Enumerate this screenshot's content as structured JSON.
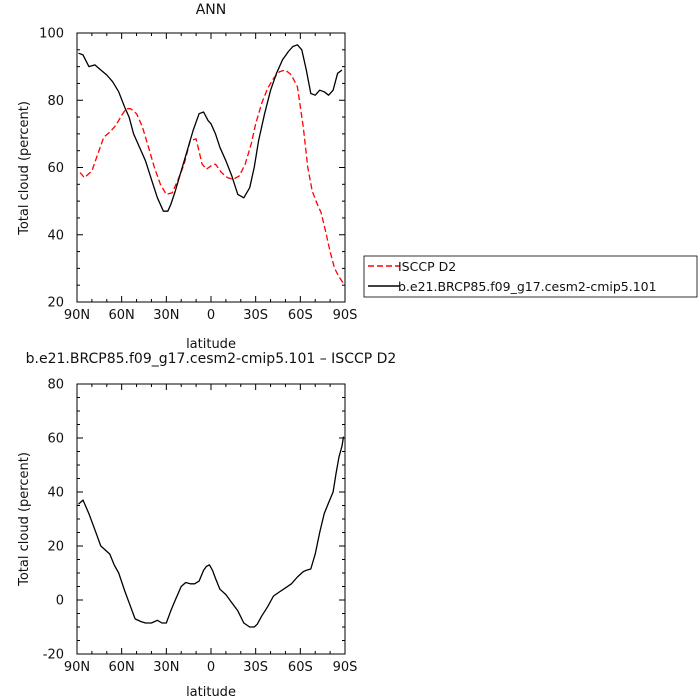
{
  "chart_data": [
    {
      "type": "line",
      "title": "ANN",
      "xlabel": "latitude",
      "ylabel": "Total cloud (percent)",
      "xlim": [
        90,
        -90
      ],
      "ylim": [
        20,
        100
      ],
      "xticks": [
        90,
        60,
        30,
        0,
        -30,
        -60,
        -90
      ],
      "xtick_labels": [
        "90N",
        "60N",
        "30N",
        "0",
        "30S",
        "60S",
        "90S"
      ],
      "yticks": [
        20,
        40,
        60,
        80,
        100
      ],
      "ytick_labels": [
        "20",
        "40",
        "60",
        "80",
        "100"
      ],
      "legend_position": "right-bottom, outside plot",
      "series": [
        {
          "name": "ISCCP D2",
          "color": "#ff0000",
          "dash": "dashed",
          "x": [
            88,
            85,
            80,
            76,
            72,
            68,
            64,
            60,
            57,
            54,
            50,
            46,
            42,
            38,
            34,
            30,
            26,
            22,
            18,
            14,
            10,
            6,
            3,
            0,
            -3,
            -7,
            -11,
            -15,
            -19,
            -23,
            -27,
            -30,
            -34,
            -38,
            -42,
            -46,
            -50,
            -54,
            -58,
            -62,
            -65,
            -68,
            -71,
            -74,
            -77,
            -80,
            -83,
            -86,
            -89
          ],
          "y": [
            58.5,
            57,
            59,
            64,
            69,
            70.5,
            72.5,
            75.5,
            77.5,
            77.5,
            76,
            72,
            66,
            60,
            55,
            52,
            52.5,
            56.5,
            61,
            68,
            68.5,
            61,
            59.5,
            60.5,
            61,
            58.5,
            57,
            56.5,
            57.5,
            61,
            67,
            73,
            79,
            83.5,
            86.5,
            88.5,
            89,
            87.5,
            84,
            72,
            60,
            53,
            49.5,
            46.5,
            41,
            35,
            30,
            27.5,
            25.5
          ]
        },
        {
          "name": "b.e21.BRCP85.f09_g17.cesm2-cmip5.101",
          "color": "#000000",
          "dash": "solid",
          "x": [
            89,
            86,
            82,
            78,
            74,
            70,
            66,
            62,
            58,
            55,
            52,
            48,
            44,
            40,
            36,
            32,
            29,
            27,
            24,
            20,
            16,
            12,
            8,
            5,
            2,
            0,
            -3,
            -6,
            -10,
            -14,
            -18,
            -22,
            -26,
            -29,
            -32,
            -36,
            -40,
            -44,
            -48,
            -52,
            -55,
            -58,
            -61,
            -64,
            -67,
            -70,
            -73,
            -76,
            -79,
            -82,
            -85,
            -88
          ],
          "y": [
            94,
            93.5,
            90,
            90.5,
            89,
            87.5,
            85.5,
            82.5,
            78,
            75,
            70,
            66,
            62,
            56.5,
            51,
            47,
            47,
            49,
            53,
            59,
            65,
            71,
            76,
            76.5,
            74,
            73,
            70,
            66,
            62,
            57.5,
            52,
            51,
            54,
            60,
            68,
            76,
            83,
            88,
            92,
            94.5,
            96,
            96.5,
            95,
            89,
            82,
            81.5,
            83,
            82.5,
            81.5,
            83,
            88,
            89
          ]
        }
      ]
    },
    {
      "type": "line",
      "title": "b.e21.BRCP85.f09_g17.cesm2-cmip5.101 – ISCCP D2",
      "xlabel": "latitude",
      "ylabel": "Total cloud (percent)",
      "xlim": [
        90,
        -90
      ],
      "ylim": [
        -20,
        80
      ],
      "xticks": [
        90,
        60,
        30,
        0,
        -30,
        -60,
        -90
      ],
      "xtick_labels": [
        "90N",
        "60N",
        "30N",
        "0",
        "30S",
        "60S",
        "90S"
      ],
      "yticks": [
        -20,
        0,
        20,
        40,
        60,
        80
      ],
      "ytick_labels": [
        "-20",
        "0",
        "20",
        "40",
        "60",
        "80"
      ],
      "series": [
        {
          "color": "#000000",
          "dash": "solid",
          "x": [
            89,
            86,
            82,
            78,
            74,
            71,
            68,
            65,
            62,
            58,
            55,
            51,
            47,
            44,
            40,
            36,
            33,
            30,
            27,
            24,
            20,
            17,
            14,
            11,
            8,
            5,
            3,
            1,
            -1,
            -3,
            -6,
            -10,
            -14,
            -18,
            -22,
            -26,
            -29,
            -31,
            -34,
            -38,
            -42,
            -46,
            -50,
            -54,
            -58,
            -62,
            -64,
            -67,
            -70,
            -73,
            -76,
            -79,
            -82,
            -84,
            -86,
            -88,
            -89
          ],
          "y": [
            35.5,
            37,
            32,
            26,
            20,
            18.5,
            17,
            13,
            10,
            3.5,
            -1,
            -7,
            -8,
            -8.5,
            -8.5,
            -7.5,
            -8.5,
            -8.5,
            -4,
            0,
            5,
            6.5,
            6,
            6,
            7,
            11,
            12.5,
            13,
            11,
            8,
            4,
            2,
            -1,
            -4,
            -8.5,
            -10,
            -10,
            -9,
            -6,
            -2.5,
            1.5,
            3,
            4.5,
            6,
            8.5,
            10.5,
            11,
            11.5,
            17,
            25,
            32,
            36,
            40,
            47,
            53,
            57,
            60.5
          ]
        }
      ]
    }
  ]
}
